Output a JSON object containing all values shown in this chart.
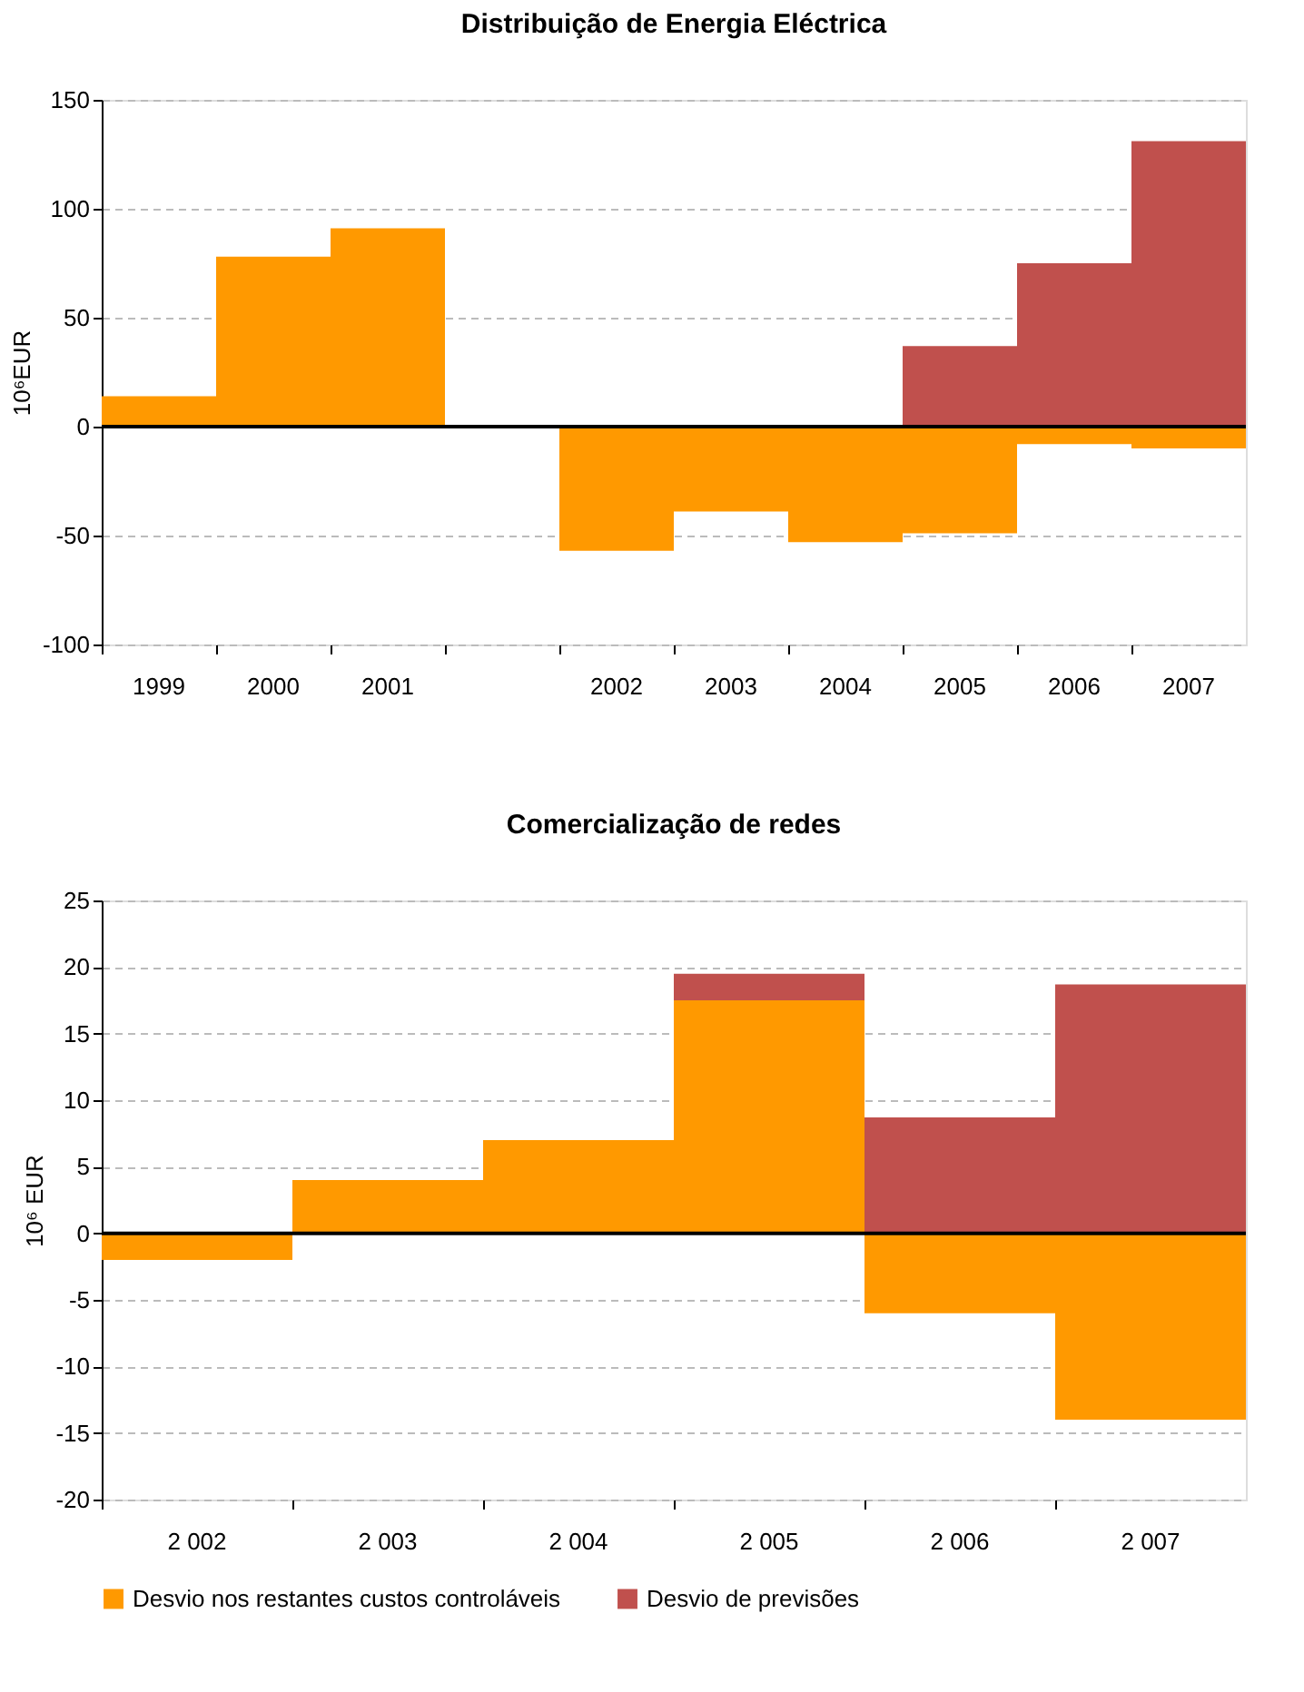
{
  "chart_data": [
    {
      "type": "bar",
      "title": "Distribuição de Energia Eléctrica",
      "ylabel": "10⁶EUR",
      "stacked": true,
      "categories": [
        "1999",
        "2000",
        "2001",
        null,
        "2002",
        "2003",
        "2004",
        "2005",
        "2006",
        "2007"
      ],
      "series": [
        {
          "color": "#ff9900",
          "values": [
            14,
            78,
            91,
            null,
            -57,
            -39,
            -53,
            -49,
            -8,
            -10
          ]
        },
        {
          "color": "#c0504d",
          "values": [
            null,
            null,
            null,
            null,
            null,
            null,
            null,
            37,
            75,
            131
          ]
        }
      ],
      "ylim": [
        -100,
        150
      ],
      "yticks": [
        -100,
        -50,
        0,
        50,
        100,
        150
      ],
      "grid": "y",
      "legend": false
    },
    {
      "type": "bar",
      "title": "Comercialização de redes",
      "ylabel": "10⁶ EUR",
      "stacked": true,
      "categories": [
        "2 002",
        "2 003",
        "2 004",
        "2 005",
        "2 006",
        "2 007"
      ],
      "series": [
        {
          "name": "Desvio nos restantes custos controláveis",
          "color": "#ff9900",
          "values": [
            -2,
            4,
            7,
            17.5,
            -6,
            -14
          ]
        },
        {
          "name": "Desvio de previsões",
          "color": "#c0504d",
          "values": [
            null,
            null,
            null,
            2,
            8.7,
            18.7
          ]
        }
      ],
      "ylim": [
        -20,
        25
      ],
      "yticks": [
        -20,
        -15,
        -10,
        -5,
        0,
        5,
        10,
        15,
        20,
        25
      ],
      "grid": "y",
      "legend": "bottom"
    }
  ]
}
